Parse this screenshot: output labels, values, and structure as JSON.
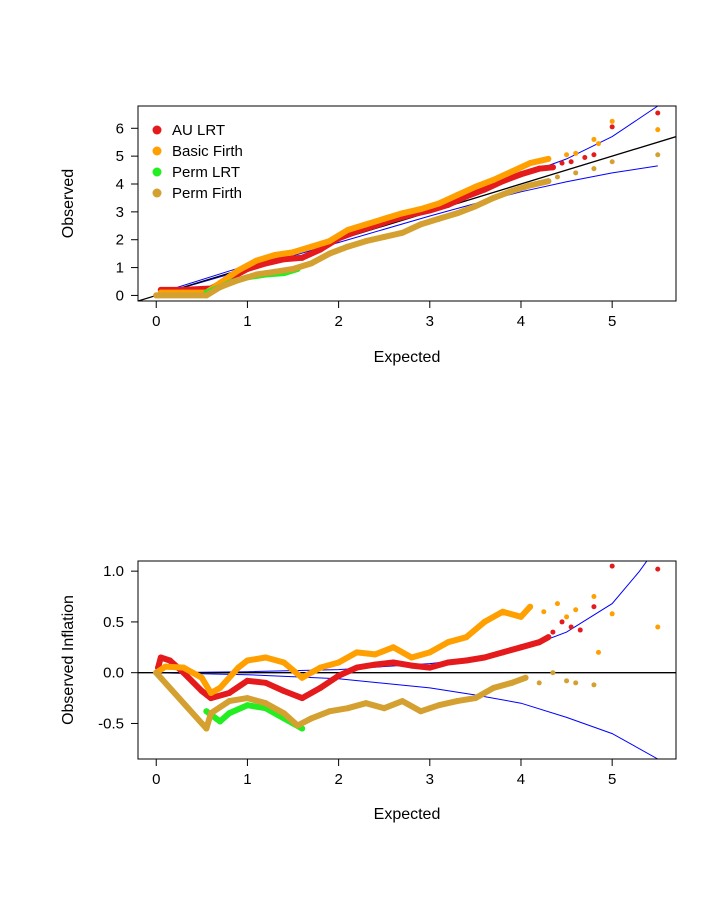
{
  "figure": {
    "background": "#ffffff"
  },
  "series_colors": {
    "AU LRT": "#e41a1c",
    "Basic Firth": "#ff9f00",
    "Perm LRT": "#22ee22",
    "Perm Firth": "#d4a030"
  },
  "line_colors": {
    "reference": "#000000",
    "confidence_band": "#0000ff"
  },
  "chart_data": [
    {
      "type": "scatter",
      "name": "qq-plot",
      "title": "",
      "xlabel": "Expected",
      "ylabel": "Observed",
      "xlim": [
        -0.2,
        5.7
      ],
      "ylim": [
        -0.2,
        6.8
      ],
      "xticks": [
        0,
        1,
        2,
        3,
        4,
        5
      ],
      "yticks": [
        0,
        1,
        2,
        3,
        4,
        5,
        6
      ],
      "legend": {
        "position": "top-left",
        "entries": [
          "AU LRT",
          "Basic Firth",
          "Perm LRT",
          "Perm Firth"
        ]
      },
      "reference_line": {
        "slope": 1,
        "intercept": 0
      },
      "confidence_band": {
        "upper": [
          [
            0,
            0.05
          ],
          [
            1,
            1.08
          ],
          [
            2,
            2.12
          ],
          [
            3,
            3.18
          ],
          [
            4,
            4.3
          ],
          [
            4.5,
            4.9
          ],
          [
            5,
            5.7
          ],
          [
            5.5,
            6.8
          ]
        ],
        "lower": [
          [
            0,
            0
          ],
          [
            1,
            0.95
          ],
          [
            2,
            1.9
          ],
          [
            3,
            2.85
          ],
          [
            3.5,
            3.3
          ],
          [
            4,
            3.72
          ],
          [
            4.5,
            4.08
          ],
          [
            5,
            4.4
          ],
          [
            5.5,
            4.65
          ]
        ]
      },
      "series": [
        {
          "name": "AU LRT",
          "points": [
            [
              0.05,
              0.2
            ],
            [
              0.3,
              0.2
            ],
            [
              0.6,
              0.25
            ],
            [
              0.8,
              0.6
            ],
            [
              1.0,
              0.95
            ],
            [
              1.2,
              1.15
            ],
            [
              1.4,
              1.3
            ],
            [
              1.6,
              1.35
            ],
            [
              1.8,
              1.65
            ],
            [
              2.0,
              2.05
            ],
            [
              2.2,
              2.3
            ],
            [
              2.4,
              2.5
            ],
            [
              2.6,
              2.72
            ],
            [
              2.8,
              2.9
            ],
            [
              3.0,
              3.05
            ],
            [
              3.2,
              3.25
            ],
            [
              3.4,
              3.55
            ],
            [
              3.6,
              3.8
            ],
            [
              3.8,
              4.1
            ],
            [
              4.0,
              4.35
            ],
            [
              4.2,
              4.55
            ],
            [
              4.35,
              4.6
            ]
          ],
          "scatter_points": [
            [
              4.45,
              4.75
            ],
            [
              4.55,
              4.8
            ],
            [
              4.7,
              4.95
            ],
            [
              4.8,
              5.05
            ],
            [
              5.0,
              6.05
            ],
            [
              5.5,
              6.55
            ]
          ]
        },
        {
          "name": "Basic Firth",
          "points": [
            [
              0.05,
              0.1
            ],
            [
              0.3,
              0.1
            ],
            [
              0.55,
              0.1
            ],
            [
              0.7,
              0.45
            ],
            [
              0.9,
              0.9
            ],
            [
              1.1,
              1.25
            ],
            [
              1.3,
              1.45
            ],
            [
              1.5,
              1.55
            ],
            [
              1.7,
              1.75
            ],
            [
              1.9,
              1.95
            ],
            [
              2.1,
              2.35
            ],
            [
              2.3,
              2.55
            ],
            [
              2.5,
              2.75
            ],
            [
              2.7,
              2.95
            ],
            [
              2.9,
              3.1
            ],
            [
              3.1,
              3.3
            ],
            [
              3.3,
              3.6
            ],
            [
              3.5,
              3.9
            ],
            [
              3.7,
              4.15
            ],
            [
              3.9,
              4.45
            ],
            [
              4.1,
              4.75
            ],
            [
              4.3,
              4.9
            ]
          ],
          "scatter_points": [
            [
              4.5,
              5.05
            ],
            [
              4.6,
              5.1
            ],
            [
              4.8,
              5.6
            ],
            [
              4.85,
              5.45
            ],
            [
              5.0,
              6.25
            ],
            [
              5.5,
              5.95
            ]
          ]
        },
        {
          "name": "Perm LRT",
          "points": [
            [
              0.55,
              0.1
            ],
            [
              0.7,
              0.3
            ],
            [
              0.8,
              0.45
            ],
            [
              0.9,
              0.55
            ],
            [
              1.0,
              0.65
            ],
            [
              1.2,
              0.75
            ],
            [
              1.4,
              0.8
            ],
            [
              1.55,
              0.95
            ]
          ],
          "scatter_points": []
        },
        {
          "name": "Perm Firth",
          "points": [
            [
              0.0,
              0.0
            ],
            [
              0.55,
              0.0
            ],
            [
              0.7,
              0.3
            ],
            [
              0.9,
              0.55
            ],
            [
              1.1,
              0.75
            ],
            [
              1.3,
              0.85
            ],
            [
              1.5,
              0.95
            ],
            [
              1.7,
              1.15
            ],
            [
              1.9,
              1.5
            ],
            [
              2.1,
              1.75
            ],
            [
              2.3,
              1.95
            ],
            [
              2.5,
              2.1
            ],
            [
              2.7,
              2.25
            ],
            [
              2.9,
              2.55
            ],
            [
              3.1,
              2.75
            ],
            [
              3.3,
              2.95
            ],
            [
              3.5,
              3.2
            ],
            [
              3.7,
              3.5
            ],
            [
              3.9,
              3.75
            ],
            [
              4.1,
              3.95
            ],
            [
              4.3,
              4.1
            ]
          ],
          "scatter_points": [
            [
              4.4,
              4.25
            ],
            [
              4.6,
              4.4
            ],
            [
              4.8,
              4.55
            ],
            [
              5.0,
              4.8
            ],
            [
              5.5,
              5.05
            ]
          ]
        }
      ]
    },
    {
      "type": "scatter",
      "name": "inflation-plot",
      "title": "",
      "xlabel": "Expected",
      "ylabel": "Observed Inflation",
      "xlim": [
        -0.2,
        5.7
      ],
      "ylim": [
        -0.85,
        1.1
      ],
      "xticks": [
        0,
        1,
        2,
        3,
        4,
        5
      ],
      "yticks": [
        -0.5,
        0.0,
        0.5,
        1.0
      ],
      "ytick_labels": [
        "-0.5",
        "0.0",
        "0.5",
        "1.0"
      ],
      "reference_line": {
        "y": 0
      },
      "confidence_band": {
        "upper": [
          [
            0,
            0
          ],
          [
            1,
            0.01
          ],
          [
            2,
            0.03
          ],
          [
            3,
            0.09
          ],
          [
            3.5,
            0.14
          ],
          [
            4,
            0.23
          ],
          [
            4.5,
            0.4
          ],
          [
            5,
            0.68
          ],
          [
            5.3,
            1.0
          ],
          [
            5.5,
            1.25
          ]
        ],
        "lower": [
          [
            0,
            0
          ],
          [
            1,
            -0.02
          ],
          [
            2,
            -0.06
          ],
          [
            3,
            -0.15
          ],
          [
            3.5,
            -0.22
          ],
          [
            4,
            -0.3
          ],
          [
            4.5,
            -0.44
          ],
          [
            5,
            -0.6
          ],
          [
            5.5,
            -0.85
          ]
        ]
      },
      "series": [
        {
          "name": "AU LRT",
          "points": [
            [
              0.02,
              0.05
            ],
            [
              0.05,
              0.15
            ],
            [
              0.15,
              0.12
            ],
            [
              0.3,
              0.0
            ],
            [
              0.5,
              -0.18
            ],
            [
              0.6,
              -0.25
            ],
            [
              0.8,
              -0.2
            ],
            [
              1.0,
              -0.08
            ],
            [
              1.2,
              -0.1
            ],
            [
              1.4,
              -0.18
            ],
            [
              1.6,
              -0.25
            ],
            [
              1.8,
              -0.15
            ],
            [
              2.0,
              -0.03
            ],
            [
              2.2,
              0.05
            ],
            [
              2.4,
              0.08
            ],
            [
              2.6,
              0.1
            ],
            [
              2.8,
              0.07
            ],
            [
              3.0,
              0.05
            ],
            [
              3.2,
              0.1
            ],
            [
              3.4,
              0.12
            ],
            [
              3.6,
              0.15
            ],
            [
              3.8,
              0.2
            ],
            [
              4.0,
              0.25
            ],
            [
              4.2,
              0.3
            ],
            [
              4.3,
              0.35
            ]
          ],
          "scatter_points": [
            [
              4.35,
              0.4
            ],
            [
              4.45,
              0.5
            ],
            [
              4.55,
              0.45
            ],
            [
              4.65,
              0.42
            ],
            [
              4.8,
              0.65
            ],
            [
              5.0,
              1.05
            ],
            [
              5.5,
              1.02
            ]
          ]
        },
        {
          "name": "Basic Firth",
          "points": [
            [
              0.0,
              0.0
            ],
            [
              0.1,
              0.06
            ],
            [
              0.3,
              0.05
            ],
            [
              0.5,
              -0.05
            ],
            [
              0.6,
              -0.2
            ],
            [
              0.7,
              -0.15
            ],
            [
              0.9,
              0.05
            ],
            [
              1.0,
              0.12
            ],
            [
              1.2,
              0.15
            ],
            [
              1.4,
              0.1
            ],
            [
              1.6,
              -0.05
            ],
            [
              1.8,
              0.05
            ],
            [
              2.0,
              0.1
            ],
            [
              2.2,
              0.2
            ],
            [
              2.4,
              0.18
            ],
            [
              2.6,
              0.25
            ],
            [
              2.8,
              0.15
            ],
            [
              3.0,
              0.2
            ],
            [
              3.2,
              0.3
            ],
            [
              3.4,
              0.35
            ],
            [
              3.6,
              0.5
            ],
            [
              3.8,
              0.6
            ],
            [
              4.0,
              0.55
            ],
            [
              4.1,
              0.65
            ]
          ],
          "scatter_points": [
            [
              4.25,
              0.6
            ],
            [
              4.4,
              0.68
            ],
            [
              4.5,
              0.55
            ],
            [
              4.6,
              0.62
            ],
            [
              4.8,
              0.75
            ],
            [
              4.85,
              0.2
            ],
            [
              5.0,
              0.58
            ],
            [
              5.5,
              0.45
            ]
          ]
        },
        {
          "name": "Perm LRT",
          "points": [
            [
              0.55,
              -0.38
            ],
            [
              0.7,
              -0.48
            ],
            [
              0.8,
              -0.4
            ],
            [
              1.0,
              -0.32
            ],
            [
              1.2,
              -0.35
            ],
            [
              1.4,
              -0.45
            ],
            [
              1.6,
              -0.55
            ]
          ],
          "scatter_points": []
        },
        {
          "name": "Perm Firth",
          "points": [
            [
              0.0,
              0.0
            ],
            [
              0.55,
              -0.55
            ],
            [
              0.6,
              -0.4
            ],
            [
              0.8,
              -0.28
            ],
            [
              1.0,
              -0.25
            ],
            [
              1.2,
              -0.3
            ],
            [
              1.4,
              -0.4
            ],
            [
              1.55,
              -0.52
            ],
            [
              1.7,
              -0.45
            ],
            [
              1.9,
              -0.38
            ],
            [
              2.1,
              -0.35
            ],
            [
              2.3,
              -0.3
            ],
            [
              2.5,
              -0.35
            ],
            [
              2.7,
              -0.28
            ],
            [
              2.9,
              -0.38
            ],
            [
              3.1,
              -0.32
            ],
            [
              3.3,
              -0.28
            ],
            [
              3.5,
              -0.25
            ],
            [
              3.7,
              -0.15
            ],
            [
              3.9,
              -0.1
            ],
            [
              4.05,
              -0.05
            ]
          ],
          "scatter_points": [
            [
              4.2,
              -0.1
            ],
            [
              4.35,
              0.0
            ],
            [
              4.5,
              -0.08
            ],
            [
              4.6,
              -0.1
            ],
            [
              4.8,
              -0.12
            ]
          ]
        }
      ]
    }
  ]
}
